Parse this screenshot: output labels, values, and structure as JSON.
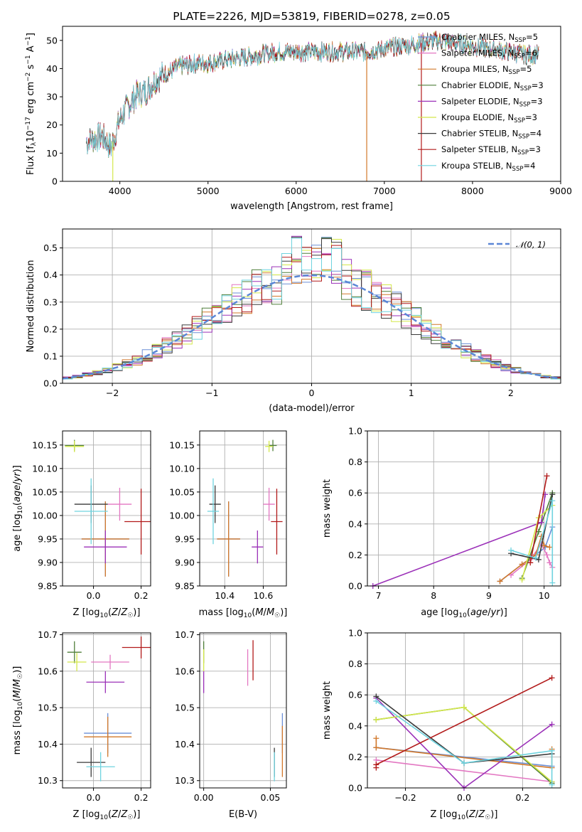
{
  "colors": {
    "Chabrier MILES": "#6b8fd6",
    "Salpeter MILES": "#e377c2",
    "Kroupa MILES": "#d2782a",
    "Chabrier ELODIE": "#4f7f3a",
    "Salpeter ELODIE": "#9b30b8",
    "Kroupa ELODIE": "#d4e84a",
    "Chabrier STELIB": "#3a3a3a",
    "Salpeter STELIB": "#b21a1a",
    "Kroupa STELIB": "#6fd3df",
    "gaussian": "#5b86d6"
  },
  "chart_data": [
    {
      "id": "spectrum",
      "type": "line",
      "title": "PLATE=2226, MJD=53819, FIBERID=0278, z=0.05",
      "xlabel": "wavelength [Angstrom, rest frame]",
      "ylabel": "Flux [fλ10⁻¹⁷ erg cm⁻² s⁻¹ A⁻¹]",
      "xlim": [
        3350,
        9000
      ],
      "ylim": [
        0,
        55
      ],
      "xticks": [
        "4000",
        "5000",
        "6000",
        "7000",
        "8000",
        "9000"
      ],
      "yticks": [
        "0",
        "10",
        "20",
        "30",
        "40",
        "50"
      ],
      "legend_position": "right",
      "legend": [
        {
          "name": "Chabrier MILES, N",
          "sub": "SSP",
          "suffix": "=5"
        },
        {
          "name": "Salpeter MILES, N",
          "sub": "SSP",
          "suffix": "=6"
        },
        {
          "name": "Kroupa MILES, N",
          "sub": "SSP",
          "suffix": "=5"
        },
        {
          "name": "Chabrier ELODIE, N",
          "sub": "SSP",
          "suffix": "=3"
        },
        {
          "name": "Salpeter ELODIE, N",
          "sub": "SSP",
          "suffix": "=3"
        },
        {
          "name": "Kroupa ELODIE, N",
          "sub": "SSP",
          "suffix": "=3"
        },
        {
          "name": "Chabrier STELIB, N",
          "sub": "SSP",
          "suffix": "=4"
        },
        {
          "name": "Salpeter STELIB, N",
          "sub": "SSP",
          "suffix": "=3"
        },
        {
          "name": "Kroupa STELIB, N",
          "sub": "SSP",
          "suffix": "=4"
        }
      ],
      "continuum": [
        [
          3620,
          14
        ],
        [
          3700,
          15
        ],
        [
          3800,
          16
        ],
        [
          3900,
          12
        ],
        [
          3950,
          17
        ],
        [
          4000,
          22
        ],
        [
          4100,
          27
        ],
        [
          4200,
          31
        ],
        [
          4300,
          32
        ],
        [
          4400,
          36
        ],
        [
          4500,
          38
        ],
        [
          4700,
          41
        ],
        [
          4900,
          42
        ],
        [
          5000,
          42
        ],
        [
          5200,
          43
        ],
        [
          5400,
          44
        ],
        [
          5600,
          45
        ],
        [
          5800,
          46
        ],
        [
          6000,
          46
        ],
        [
          6200,
          46
        ],
        [
          6400,
          46
        ],
        [
          6600,
          46
        ],
        [
          6800,
          46
        ],
        [
          7000,
          47
        ],
        [
          7200,
          48
        ],
        [
          7400,
          49
        ],
        [
          7600,
          50
        ],
        [
          7800,
          49
        ],
        [
          8000,
          48
        ],
        [
          8200,
          47
        ],
        [
          8400,
          46
        ],
        [
          8600,
          45
        ],
        [
          8750,
          45
        ]
      ],
      "spikes": [
        [
          3920,
          0
        ],
        [
          6800,
          0
        ],
        [
          7420,
          0
        ]
      ]
    },
    {
      "id": "residuals",
      "type": "line",
      "xlabel": "(data-model)/error",
      "ylabel": "Normed distribution",
      "xlim": [
        -2.5,
        2.5
      ],
      "ylim": [
        0,
        0.57
      ],
      "xticks": [
        -2,
        -1,
        0,
        1,
        2
      ],
      "yticks": [
        0.0,
        0.1,
        0.2,
        0.3,
        0.4,
        0.5
      ],
      "legend": "𝒩(0, 1)",
      "bin_width": 0.1
    },
    {
      "id": "age_vs_Z",
      "type": "scatter",
      "xlabel": "Z [log10(Z/Z☉)]",
      "ylabel": "age  [log10(age/yr)]",
      "xlim": [
        -0.13,
        0.24
      ],
      "ylim": [
        9.85,
        10.18
      ],
      "xticks": [
        "0.0",
        "0.2"
      ],
      "yticks": [
        "9.85",
        "9.90",
        "9.95",
        "10.00",
        "10.05",
        "10.10",
        "10.15"
      ],
      "points": [
        {
          "model": "Chabrier MILES",
          "x": 0.05,
          "y": 9.95,
          "xerr": 0.1,
          "yerr": 0.08
        },
        {
          "model": "Salpeter MILES",
          "x": 0.11,
          "y": 10.024,
          "xerr": 0.05,
          "yerr": 0.035
        },
        {
          "model": "Kroupa MILES",
          "x": 0.05,
          "y": 9.95,
          "xerr": 0.1,
          "yerr": 0.08
        },
        {
          "model": "Chabrier ELODIE",
          "x": -0.08,
          "y": 10.149,
          "xerr": 0.04,
          "yerr": 0.012
        },
        {
          "model": "Salpeter ELODIE",
          "x": 0.05,
          "y": 9.933,
          "xerr": 0.09,
          "yerr": 0.035
        },
        {
          "model": "Kroupa ELODIE",
          "x": -0.08,
          "y": 10.147,
          "xerr": 0.04,
          "yerr": 0.012
        },
        {
          "model": "Chabrier STELIB",
          "x": -0.01,
          "y": 10.024,
          "xerr": 0.07,
          "yerr": 0.04
        },
        {
          "model": "Salpeter STELIB",
          "x": 0.2,
          "y": 9.987,
          "xerr": 0.07,
          "yerr": 0.07
        },
        {
          "model": "Kroupa STELIB",
          "x": -0.01,
          "y": 10.009,
          "xerr": 0.07,
          "yerr": 0.07
        }
      ]
    },
    {
      "id": "age_vs_mass",
      "type": "scatter",
      "xlabel": "mass [log10(M/M☉)]",
      "ylabel": "",
      "xlim": [
        10.27,
        10.72
      ],
      "ylim": [
        9.85,
        10.18
      ],
      "xticks": [
        "10.4",
        "10.6"
      ],
      "yticks": [
        "9.85",
        "9.90",
        "9.95",
        "10.00",
        "10.05",
        "10.10",
        "10.15"
      ],
      "points": [
        {
          "model": "Chabrier MILES",
          "x": 10.42,
          "y": 9.95,
          "xerr": 0.06,
          "yerr": 0.08
        },
        {
          "model": "Salpeter MILES",
          "x": 10.63,
          "y": 10.024,
          "xerr": 0.03,
          "yerr": 0.035
        },
        {
          "model": "Kroupa MILES",
          "x": 10.42,
          "y": 9.95,
          "xerr": 0.06,
          "yerr": 0.08
        },
        {
          "model": "Chabrier ELODIE",
          "x": 10.65,
          "y": 10.149,
          "xerr": 0.02,
          "yerr": 0.012
        },
        {
          "model": "Salpeter ELODIE",
          "x": 10.57,
          "y": 9.933,
          "xerr": 0.03,
          "yerr": 0.035
        },
        {
          "model": "Kroupa ELODIE",
          "x": 10.63,
          "y": 10.147,
          "xerr": 0.02,
          "yerr": 0.012
        },
        {
          "model": "Chabrier STELIB",
          "x": 10.35,
          "y": 10.024,
          "xerr": 0.03,
          "yerr": 0.04
        },
        {
          "model": "Salpeter STELIB",
          "x": 10.67,
          "y": 9.987,
          "xerr": 0.03,
          "yerr": 0.07
        },
        {
          "model": "Kroupa STELIB",
          "x": 10.34,
          "y": 10.009,
          "xerr": 0.03,
          "yerr": 0.07
        }
      ]
    },
    {
      "id": "weight_vs_age",
      "type": "line",
      "xlabel": "age  [log10(age/yr)]",
      "ylabel": "mass weight",
      "xlim": [
        6.8,
        10.3
      ],
      "ylim": [
        0,
        1.0
      ],
      "xticks": [
        "7",
        "8",
        "9",
        "10"
      ],
      "yticks": [
        "0.0",
        "0.2",
        "0.4",
        "0.6",
        "0.8",
        "1.0"
      ],
      "series": [
        {
          "model": "Chabrier MILES",
          "points": [
            [
              9.2,
              0.03
            ],
            [
              9.6,
              0.14
            ],
            [
              9.85,
              0.2
            ],
            [
              10.02,
              0.25
            ],
            [
              10.15,
              0.38
            ]
          ]
        },
        {
          "model": "Salpeter MILES",
          "points": [
            [
              9.4,
              0.07
            ],
            [
              9.75,
              0.17
            ],
            [
              9.95,
              0.27
            ],
            [
              10.05,
              0.2
            ],
            [
              10.1,
              0.15
            ],
            [
              10.15,
              0.12
            ]
          ]
        },
        {
          "model": "Kroupa MILES",
          "points": [
            [
              9.2,
              0.03
            ],
            [
              9.6,
              0.14
            ],
            [
              9.85,
              0.2
            ],
            [
              9.95,
              0.32
            ],
            [
              10.0,
              0.26
            ],
            [
              10.1,
              0.25
            ]
          ]
        },
        {
          "model": "Chabrier ELODIE",
          "points": [
            [
              9.6,
              0.05
            ],
            [
              9.9,
              0.35
            ],
            [
              10.15,
              0.6
            ]
          ]
        },
        {
          "model": "Salpeter ELODIE",
          "points": [
            [
              6.9,
              0.0
            ],
            [
              9.95,
              0.41
            ],
            [
              10.02,
              0.59
            ]
          ]
        },
        {
          "model": "Kroupa ELODIE",
          "points": [
            [
              9.6,
              0.04
            ],
            [
              9.9,
              0.44
            ],
            [
              10.15,
              0.52
            ]
          ]
        },
        {
          "model": "Chabrier STELIB",
          "points": [
            [
              9.4,
              0.21
            ],
            [
              9.9,
              0.17
            ],
            [
              10.15,
              0.59
            ]
          ]
        },
        {
          "model": "Salpeter STELIB",
          "points": [
            [
              9.75,
              0.15
            ],
            [
              10.05,
              0.71
            ]
          ]
        },
        {
          "model": "Kroupa STELIB",
          "points": [
            [
              9.4,
              0.23
            ],
            [
              9.85,
              0.18
            ],
            [
              10.15,
              0.55
            ],
            [
              10.15,
              0.02
            ]
          ]
        }
      ]
    },
    {
      "id": "mass_vs_Z",
      "type": "scatter",
      "xlabel": "Z [log10(Z/Z☉)]",
      "ylabel": "mass [log10(M/M☉)]",
      "xlim": [
        -0.13,
        0.24
      ],
      "ylim": [
        10.28,
        10.705
      ],
      "xticks": [
        "0.0",
        "0.2"
      ],
      "yticks": [
        "10.3",
        "10.4",
        "10.5",
        "10.6",
        "10.7"
      ],
      "points": [
        {
          "model": "Chabrier MILES",
          "x": 0.06,
          "y": 10.43,
          "xerr": 0.1,
          "yerr": 0.055
        },
        {
          "model": "Salpeter MILES",
          "x": 0.07,
          "y": 10.625,
          "xerr": 0.08,
          "yerr": 0.02
        },
        {
          "model": "Kroupa MILES",
          "x": 0.06,
          "y": 10.42,
          "xerr": 0.1,
          "yerr": 0.055
        },
        {
          "model": "Chabrier ELODIE",
          "x": -0.08,
          "y": 10.652,
          "xerr": 0.03,
          "yerr": 0.03
        },
        {
          "model": "Salpeter ELODIE",
          "x": 0.05,
          "y": 10.57,
          "xerr": 0.08,
          "yerr": 0.03
        },
        {
          "model": "Kroupa ELODIE",
          "x": -0.07,
          "y": 10.625,
          "xerr": 0.04,
          "yerr": 0.025
        },
        {
          "model": "Chabrier STELIB",
          "x": -0.01,
          "y": 10.35,
          "xerr": 0.06,
          "yerr": 0.04
        },
        {
          "model": "Salpeter STELIB",
          "x": 0.2,
          "y": 10.665,
          "xerr": 0.08,
          "yerr": 0.03
        },
        {
          "model": "Kroupa STELIB",
          "x": 0.03,
          "y": 10.338,
          "xerr": 0.06,
          "yerr": 0.04
        }
      ]
    },
    {
      "id": "mass_vs_ebv",
      "type": "scatter",
      "xlabel": "E(B-V)",
      "ylabel": "",
      "xlim": [
        -0.003,
        0.062
      ],
      "ylim": [
        10.28,
        10.705
      ],
      "xticks": [
        "0.00",
        "0.05"
      ],
      "yticks": [
        "10.3",
        "10.4",
        "10.5",
        "10.6",
        "10.7"
      ],
      "points": [
        {
          "model": "Chabrier MILES",
          "x": 0.059,
          "y": 10.43,
          "yerr": 0.055
        },
        {
          "model": "Salpeter MILES",
          "x": 0.033,
          "y": 10.61,
          "yerr": 0.05
        },
        {
          "model": "Kroupa MILES",
          "x": 0.059,
          "y": 10.38,
          "yerr": 0.07
        },
        {
          "model": "Chabrier ELODIE",
          "x": 0.0,
          "y": 10.652,
          "yerr": 0.03
        },
        {
          "model": "Salpeter ELODIE",
          "x": 0.0,
          "y": 10.57,
          "yerr": 0.03
        },
        {
          "model": "Kroupa ELODIE",
          "x": 0.0,
          "y": 10.63,
          "yerr": 0.03
        },
        {
          "model": "Chabrier STELIB",
          "x": 0.053,
          "y": 10.35,
          "yerr": 0.04
        },
        {
          "model": "Salpeter STELIB",
          "x": 0.037,
          "y": 10.63,
          "yerr": 0.055
        },
        {
          "model": "Kroupa STELIB",
          "x": 0.053,
          "y": 10.338,
          "yerr": 0.04
        }
      ]
    },
    {
      "id": "weight_vs_Z",
      "type": "line",
      "xlabel": "Z [log10(Z/Z☉)]",
      "ylabel": "mass weight",
      "xlim": [
        -0.33,
        0.33
      ],
      "ylim": [
        0,
        1.0
      ],
      "xticks": [
        "−0.2",
        "0.0",
        "0.2"
      ],
      "yticks": [
        "0.0",
        "0.2",
        "0.4",
        "0.6",
        "0.8",
        "1.0"
      ],
      "series": [
        {
          "model": "Chabrier MILES",
          "points": [
            [
              -0.3,
              0.26
            ],
            [
              0.3,
              0.14
            ]
          ]
        },
        {
          "model": "Salpeter MILES",
          "points": [
            [
              -0.3,
              0.18
            ],
            [
              0.3,
              0.04
            ]
          ]
        },
        {
          "model": "Kroupa MILES",
          "points": [
            [
              -0.3,
              0.32
            ],
            [
              -0.3,
              0.26
            ],
            [
              0.3,
              0.13
            ],
            [
              0.3,
              0.25
            ]
          ]
        },
        {
          "model": "Chabrier ELODIE",
          "points": [
            [
              -0.3,
              0.44
            ],
            [
              0.0,
              0.52
            ],
            [
              0.3,
              0.03
            ]
          ]
        },
        {
          "model": "Salpeter ELODIE",
          "points": [
            [
              -0.3,
              0.58
            ],
            [
              0.0,
              0.0
            ],
            [
              0.3,
              0.41
            ]
          ]
        },
        {
          "model": "Kroupa ELODIE",
          "points": [
            [
              -0.3,
              0.44
            ],
            [
              0.0,
              0.52
            ],
            [
              0.3,
              0.04
            ]
          ]
        },
        {
          "model": "Chabrier STELIB",
          "points": [
            [
              -0.3,
              0.59
            ],
            [
              0.0,
              0.16
            ],
            [
              0.3,
              0.22
            ]
          ]
        },
        {
          "model": "Salpeter STELIB",
          "points": [
            [
              -0.3,
              0.13
            ],
            [
              -0.3,
              0.15
            ],
            [
              0.3,
              0.71
            ]
          ]
        },
        {
          "model": "Kroupa STELIB",
          "points": [
            [
              -0.3,
              0.56
            ],
            [
              0.0,
              0.16
            ],
            [
              0.3,
              0.24
            ],
            [
              0.3,
              0.02
            ]
          ]
        }
      ]
    }
  ]
}
